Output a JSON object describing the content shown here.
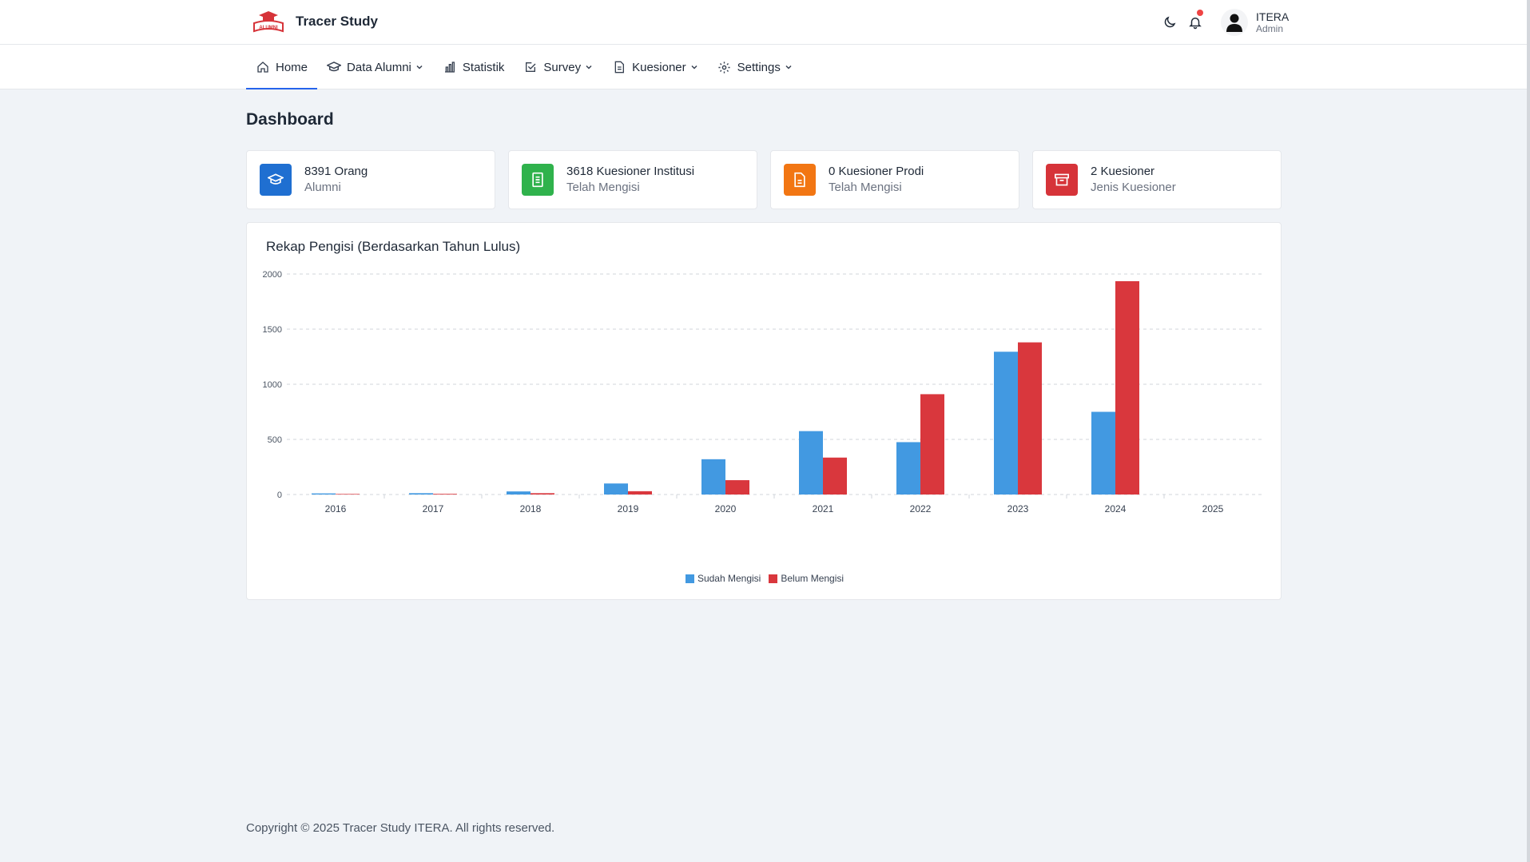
{
  "app": {
    "title": "Tracer Study",
    "logo_text": "ALUMNI"
  },
  "header": {
    "user_name": "ITERA",
    "user_role": "Admin",
    "theme_icon": "moon-icon",
    "notification_icon": "bell-icon"
  },
  "nav": {
    "items": [
      {
        "label": "Home",
        "icon": "home-icon",
        "active": true,
        "dropdown": false
      },
      {
        "label": "Data Alumni",
        "icon": "graduation-cap-icon",
        "active": false,
        "dropdown": true
      },
      {
        "label": "Statistik",
        "icon": "bar-chart-icon",
        "active": false,
        "dropdown": false
      },
      {
        "label": "Survey",
        "icon": "checkbox-icon",
        "active": false,
        "dropdown": true
      },
      {
        "label": "Kuesioner",
        "icon": "document-icon",
        "active": false,
        "dropdown": true
      },
      {
        "label": "Settings",
        "icon": "gear-icon",
        "active": false,
        "dropdown": true
      }
    ]
  },
  "page": {
    "title": "Dashboard"
  },
  "cards": [
    {
      "main": "8391 Orang",
      "sub": "Alumni",
      "color": "#1f6fd1",
      "icon": "graduation-cap-icon"
    },
    {
      "main": "3618 Kuesioner Institusi",
      "sub": "Telah Mengisi",
      "color": "#2fb24c",
      "icon": "document-list-icon"
    },
    {
      "main": "0 Kuesioner Prodi",
      "sub": "Telah Mengisi",
      "color": "#f27613",
      "icon": "document-icon"
    },
    {
      "main": "2 Kuesioner",
      "sub": "Jenis Kuesioner",
      "color": "#d63339",
      "icon": "archive-icon"
    }
  ],
  "chart_data": {
    "type": "bar",
    "title": "Rekap Pengisi (Berdasarkan Tahun Lulus)",
    "categories": [
      "2016",
      "2017",
      "2018",
      "2019",
      "2020",
      "2021",
      "2022",
      "2023",
      "2024",
      "2025"
    ],
    "series": [
      {
        "name": "Sudah Mengisi",
        "color": "#4299e1",
        "values": [
          10,
          12,
          28,
          100,
          320,
          575,
          475,
          1295,
          750,
          0
        ]
      },
      {
        "name": "Belum Mengisi",
        "color": "#d9373d",
        "values": [
          5,
          6,
          12,
          30,
          130,
          335,
          910,
          1380,
          1935,
          0
        ]
      }
    ],
    "yticks": [
      "0",
      "500",
      "1000",
      "1500",
      "2000"
    ],
    "ylim": [
      0,
      2000
    ],
    "grid": true,
    "legend": "bottom"
  },
  "footer": {
    "text": "Copyright © 2025 Tracer Study ITERA. All rights reserved."
  }
}
